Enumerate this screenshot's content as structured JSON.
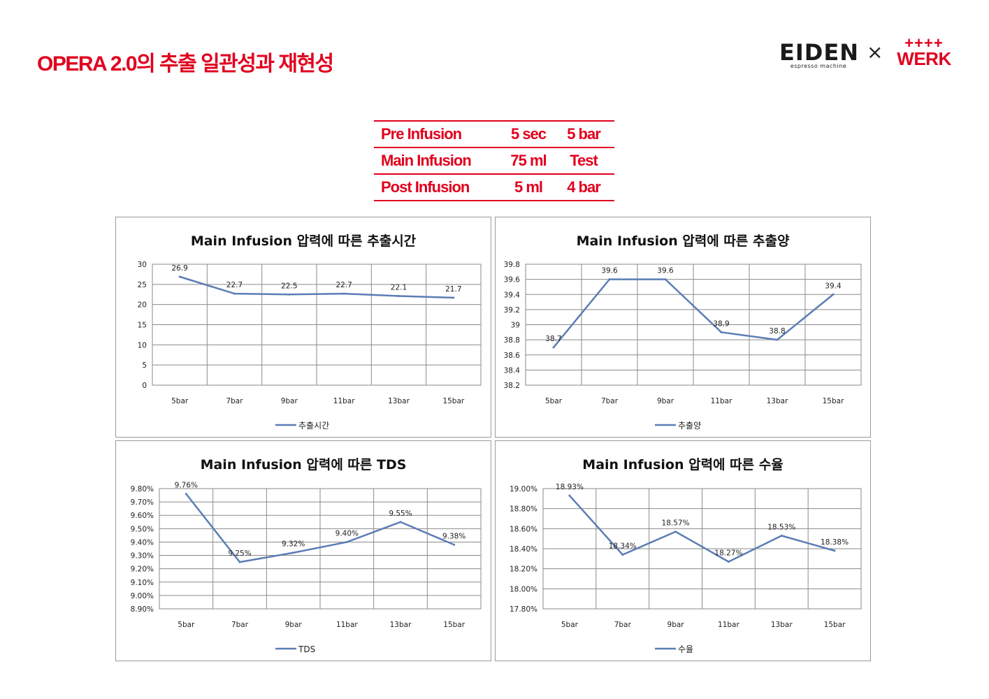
{
  "slide": {
    "title": "OPERA 2.0의 추출 일관성과 재현성",
    "brand_left": "EIDEN",
    "brand_left_sub": "espresso machine",
    "brand_sep": "×",
    "brand_right_plus": "++++",
    "brand_right": "WERK",
    "accent_color": "#e1001e"
  },
  "params": [
    {
      "name": "Pre Infusion",
      "value": "5 sec",
      "setting": "5 bar"
    },
    {
      "name": "Main Infusion",
      "value": "75 ml",
      "setting": "Test"
    },
    {
      "name": "Post Infusion",
      "value": "5 ml",
      "setting": "4 bar"
    }
  ],
  "chart_data": [
    {
      "type": "line",
      "title": "Main Infusion 압력에 따른 추출시간",
      "categories": [
        "5bar",
        "7bar",
        "9bar",
        "11bar",
        "13bar",
        "15bar"
      ],
      "series": [
        {
          "name": "추출시간",
          "values": [
            26.9,
            22.7,
            22.5,
            22.7,
            22.1,
            21.7
          ]
        }
      ],
      "data_labels": [
        "26.9",
        "22.7",
        "22.5",
        "22.7",
        "22.1",
        "21.7"
      ],
      "ylim": [
        0,
        30
      ],
      "yticks": [
        0,
        5,
        10,
        15,
        20,
        25,
        30
      ],
      "ytick_labels": [
        "0",
        "5",
        "10",
        "15",
        "20",
        "25",
        "30"
      ],
      "line_color": "#5b7db5",
      "grid": true,
      "legend": "bottom"
    },
    {
      "type": "line",
      "title": "Main Infusion 압력에 따른 추출양",
      "categories": [
        "5bar",
        "7bar",
        "9bar",
        "11bar",
        "13bar",
        "15bar"
      ],
      "series": [
        {
          "name": "추출양",
          "values": [
            38.7,
            39.6,
            39.6,
            38.9,
            38.8,
            39.4
          ]
        }
      ],
      "data_labels": [
        "38.7",
        "39.6",
        "39.6",
        "38.9",
        "38.8",
        "39.4"
      ],
      "ylim": [
        38.2,
        39.8
      ],
      "yticks": [
        38.2,
        38.4,
        38.6,
        38.8,
        39.0,
        39.2,
        39.4,
        39.6,
        39.8
      ],
      "ytick_labels": [
        "38.2",
        "38.4",
        "38.6",
        "38.8",
        "39",
        "39.2",
        "39.4",
        "39.6",
        "39.8"
      ],
      "line_color": "#5b7db5",
      "grid": true,
      "legend": "bottom"
    },
    {
      "type": "line",
      "title": "Main Infusion 압력에 따른 TDS",
      "categories": [
        "5bar",
        "7bar",
        "9bar",
        "11bar",
        "13bar",
        "15bar"
      ],
      "series": [
        {
          "name": "TDS",
          "values": [
            9.76,
            9.25,
            9.32,
            9.4,
            9.55,
            9.38
          ]
        }
      ],
      "data_labels": [
        "9.76%",
        "9.25%",
        "9.32%",
        "9.40%",
        "9.55%",
        "9.38%"
      ],
      "ylim": [
        8.9,
        9.8
      ],
      "yticks": [
        8.9,
        9.0,
        9.1,
        9.2,
        9.3,
        9.4,
        9.5,
        9.6,
        9.7,
        9.8
      ],
      "ytick_labels": [
        "8.90%",
        "9.00%",
        "9.10%",
        "9.20%",
        "9.30%",
        "9.40%",
        "9.50%",
        "9.60%",
        "9.70%",
        "9.80%"
      ],
      "line_color": "#5b7db5",
      "grid": true,
      "legend": "bottom"
    },
    {
      "type": "line",
      "title": "Main Infusion 압력에 따른 수율",
      "categories": [
        "5bar",
        "7bar",
        "9bar",
        "11bar",
        "13bar",
        "15bar"
      ],
      "series": [
        {
          "name": "수율",
          "values": [
            18.93,
            18.34,
            18.57,
            18.27,
            18.53,
            18.38
          ]
        }
      ],
      "data_labels": [
        "18.93%",
        "18.34%",
        "18.57%",
        "18.27%",
        "18.53%",
        "18.38%"
      ],
      "ylim": [
        17.8,
        19.0
      ],
      "yticks": [
        17.8,
        18.0,
        18.2,
        18.4,
        18.6,
        18.8,
        19.0
      ],
      "ytick_labels": [
        "17.80%",
        "18.00%",
        "18.20%",
        "18.40%",
        "18.60%",
        "18.80%",
        "19.00%"
      ],
      "line_color": "#5b7db5",
      "grid": true,
      "legend": "bottom"
    }
  ]
}
